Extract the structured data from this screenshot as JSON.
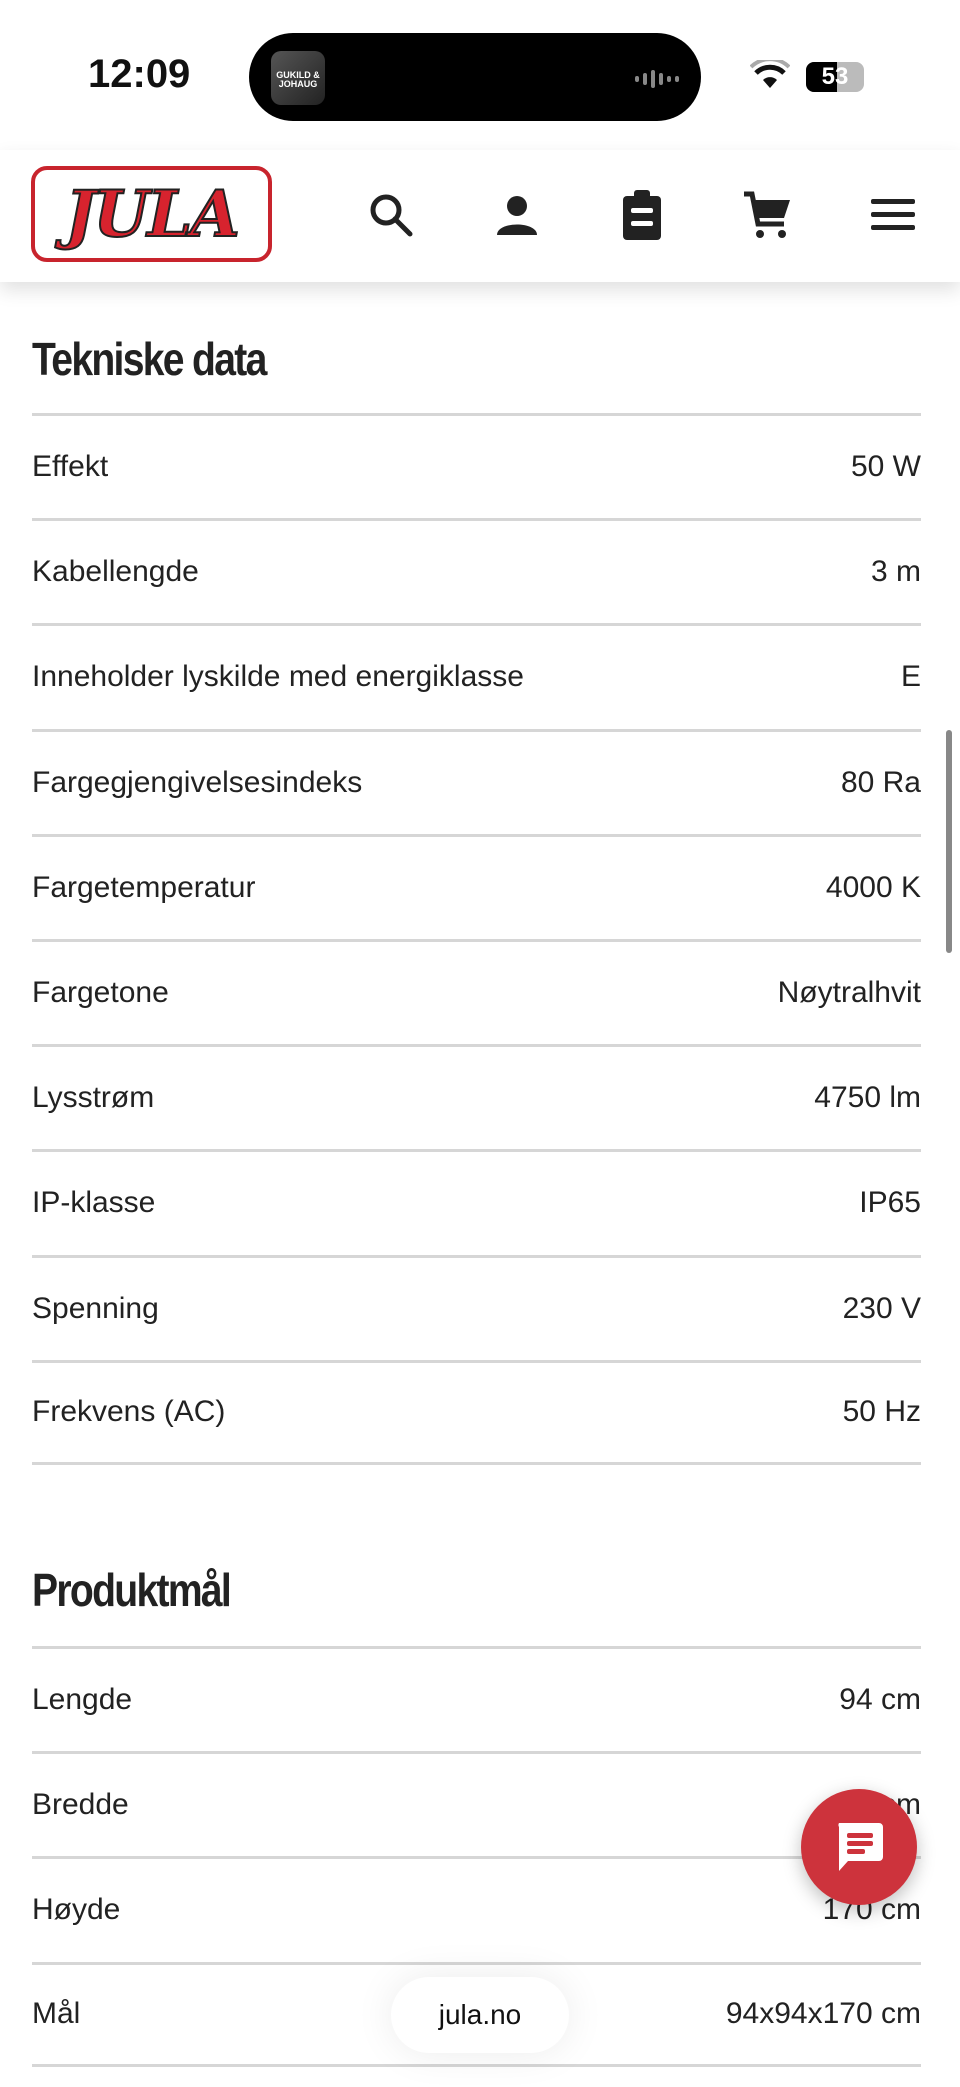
{
  "status_bar": {
    "time": "12:09",
    "battery": "53",
    "now_playing_art": "GUKILD & JOHAUG"
  },
  "header": {
    "logo": "JULA",
    "icons": [
      "search-icon",
      "user-icon",
      "clipboard-icon",
      "cart-icon",
      "menu-icon"
    ]
  },
  "tech": {
    "title": "Tekniske data",
    "rows": [
      {
        "label": "Effekt",
        "value": "50 W"
      },
      {
        "label": "Kabellengde",
        "value": "3 m"
      },
      {
        "label": "Inneholder lyskilde med energiklasse",
        "value": "E"
      },
      {
        "label": "Fargegjengivelsesindeks",
        "value": "80 Ra"
      },
      {
        "label": "Fargetemperatur",
        "value": "4000 K"
      },
      {
        "label": "Fargetone",
        "value": "Nøytralhvit"
      },
      {
        "label": "Lysstrøm",
        "value": "4750 lm"
      },
      {
        "label": "IP-klasse",
        "value": "IP65"
      },
      {
        "label": "Spenning",
        "value": "230 V"
      },
      {
        "label": "Frekvens (AC)",
        "value": "50 Hz"
      }
    ]
  },
  "dims": {
    "title": "Produktmål",
    "rows": [
      {
        "label": "Lengde",
        "value": "94 cm"
      },
      {
        "label": "Bredde",
        "value": "94 cm"
      },
      {
        "label": "Høyde",
        "value": "170 cm"
      },
      {
        "label": "Mål",
        "value": "94x94x170 cm"
      }
    ]
  },
  "url_pill": "jula.no",
  "colors": {
    "brand_red": "#cd333c",
    "divider": "#d6d6d6"
  }
}
